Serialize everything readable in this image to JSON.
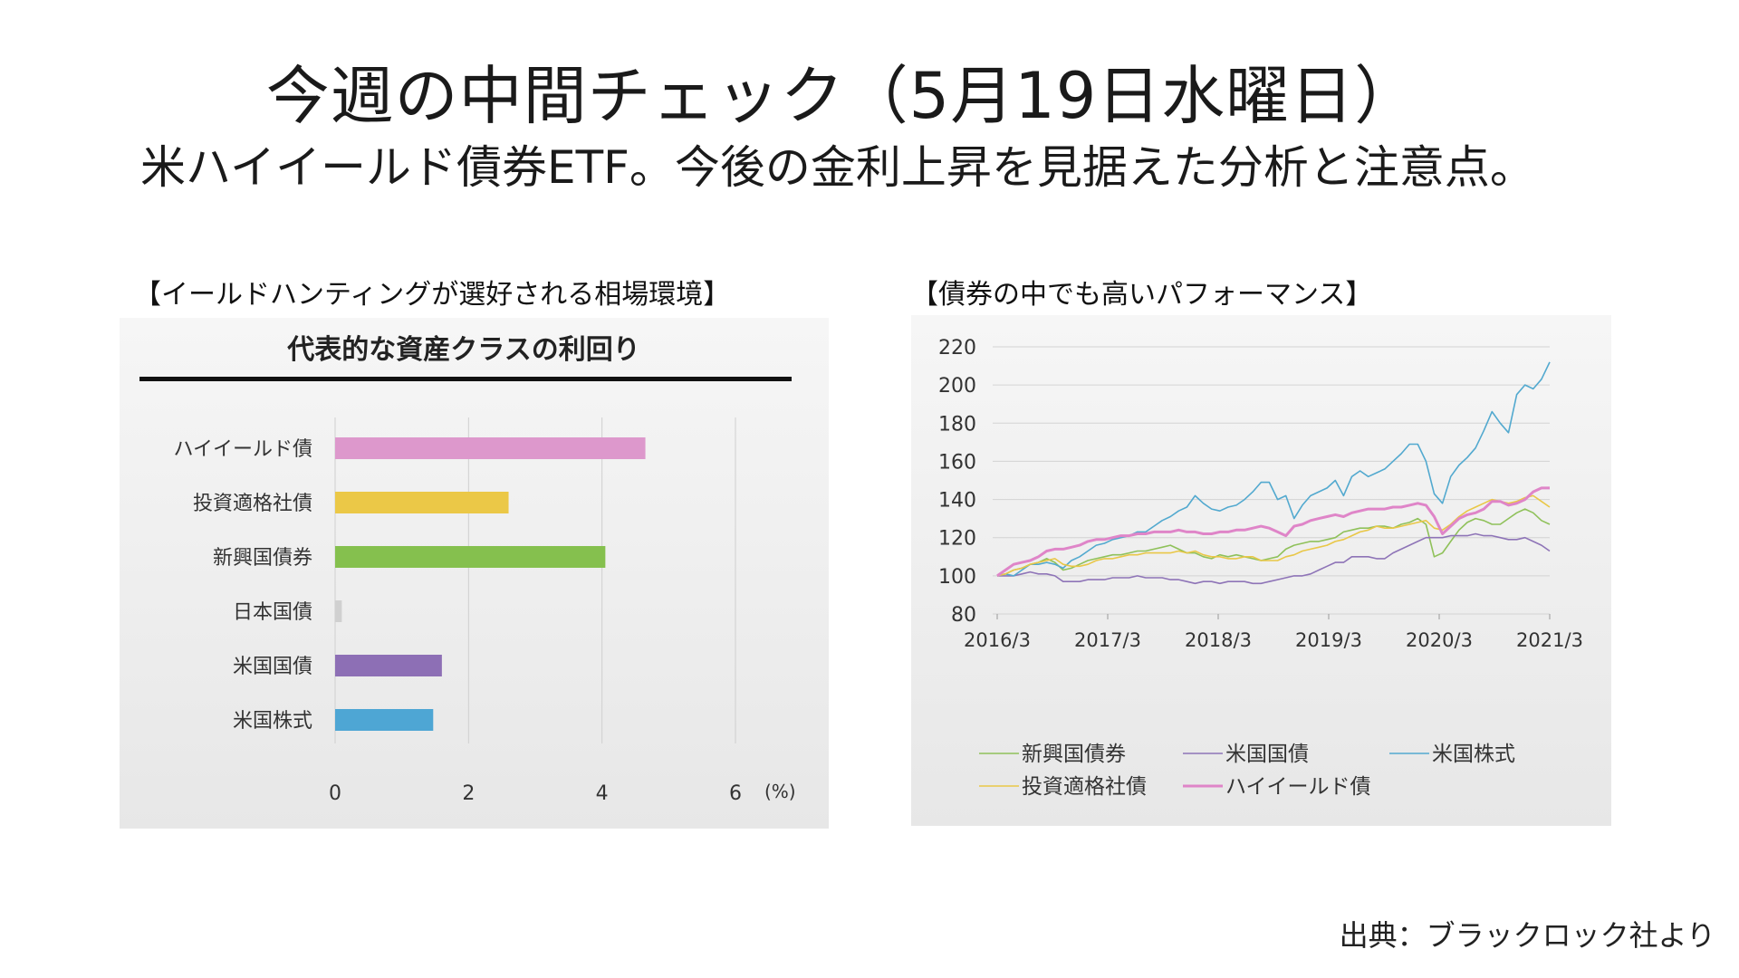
{
  "title": "今週の中間チェック（5月19日水曜日）",
  "subtitle": "米ハイイールド債券ETF。今後の金利上昇を見据えた分析と注意点。",
  "left_panel_label": "【イールドハンティングが選好される相場環境】",
  "right_panel_label": "【債券の中でも高いパフォーマンス】",
  "source": "出典：ブラックロック社より",
  "chart_data": [
    {
      "type": "bar",
      "orientation": "horizontal",
      "title": "代表的な資産クラスの利回り",
      "categories": [
        "ハイイールド債",
        "投資適格社債",
        "新興国債券",
        "日本国債",
        "米国国債",
        "米国株式"
      ],
      "values": [
        4.65,
        2.6,
        4.05,
        0.1,
        1.6,
        1.47
      ],
      "colors": [
        "#dd98cc",
        "#ebc847",
        "#85c04e",
        "#d0d0d0",
        "#8d6fb5",
        "#4ea6d4"
      ],
      "xlim": [
        0,
        6
      ],
      "xticks": [
        "0",
        "2",
        "4",
        "6"
      ],
      "xunit": "(%)",
      "grid": "vertical"
    },
    {
      "type": "line",
      "xlabels": [
        "2016/3",
        "2017/3",
        "2018/3",
        "2019/3",
        "2020/3",
        "2021/3"
      ],
      "ylim": [
        80,
        220
      ],
      "yticks": [
        "80",
        "100",
        "120",
        "140",
        "160",
        "180",
        "200",
        "220"
      ],
      "grid": "horizontal",
      "legend_position": "bottom",
      "series": [
        {
          "name": "新興国債券",
          "color": "#8fc15a",
          "width": 1.6,
          "values": [
            100,
            101,
            103,
            104,
            106,
            107,
            109,
            107,
            103,
            104,
            106,
            108,
            109,
            110,
            111,
            111,
            112,
            113,
            113,
            114,
            115,
            116,
            114,
            112,
            112,
            110,
            109,
            111,
            110,
            111,
            110,
            109,
            108,
            109,
            110,
            114,
            116,
            117,
            118,
            118,
            119,
            120,
            123,
            124,
            125,
            125,
            126,
            126,
            125,
            127,
            128,
            130,
            127,
            110,
            112,
            118,
            124,
            128,
            130,
            129,
            127,
            127,
            130,
            133,
            135,
            133,
            129,
            127
          ]
        },
        {
          "name": "米国国債",
          "color": "#8e74b7",
          "width": 1.6,
          "values": [
            100,
            100,
            100,
            101,
            102,
            101,
            101,
            100,
            97,
            97,
            97,
            98,
            98,
            98,
            99,
            99,
            99,
            100,
            99,
            99,
            99,
            98,
            98,
            97,
            96,
            97,
            97,
            96,
            97,
            97,
            97,
            96,
            96,
            97,
            98,
            99,
            100,
            100,
            101,
            103,
            105,
            107,
            107,
            110,
            110,
            110,
            109,
            109,
            112,
            114,
            116,
            118,
            120,
            120,
            120,
            121,
            121,
            121,
            122,
            121,
            121,
            120,
            119,
            119,
            120,
            118,
            116,
            113
          ]
        },
        {
          "name": "米国株式",
          "color": "#52a9cf",
          "width": 1.6,
          "values": [
            100,
            101,
            100,
            103,
            106,
            106,
            107,
            106,
            104,
            108,
            110,
            113,
            116,
            117,
            119,
            120,
            121,
            123,
            123,
            126,
            129,
            131,
            134,
            136,
            142,
            138,
            135,
            134,
            136,
            137,
            140,
            144,
            149,
            149,
            140,
            142,
            130,
            137,
            142,
            144,
            146,
            150,
            142,
            152,
            155,
            152,
            154,
            156,
            160,
            164,
            169,
            169,
            160,
            143,
            138,
            152,
            158,
            162,
            167,
            176,
            186,
            180,
            175,
            195,
            200,
            198,
            203,
            212
          ]
        },
        {
          "name": "投資適格社債",
          "color": "#e9c747",
          "width": 1.6,
          "values": [
            100,
            101,
            103,
            104,
            106,
            107,
            108,
            109,
            106,
            105,
            105,
            106,
            108,
            109,
            109,
            110,
            111,
            111,
            112,
            112,
            112,
            112,
            113,
            112,
            113,
            111,
            110,
            110,
            109,
            109,
            110,
            110,
            108,
            108,
            108,
            110,
            111,
            113,
            114,
            115,
            116,
            118,
            119,
            121,
            123,
            124,
            126,
            125,
            125,
            126,
            127,
            128,
            129,
            125,
            124,
            127,
            131,
            134,
            136,
            138,
            140,
            139,
            138,
            139,
            141,
            142,
            139,
            136
          ]
        },
        {
          "name": "ハイイールド債",
          "color": "#df85c8",
          "width": 3,
          "values": [
            100,
            103,
            106,
            107,
            108,
            110,
            113,
            114,
            114,
            115,
            116,
            118,
            119,
            119,
            120,
            121,
            121,
            122,
            122,
            123,
            123,
            123,
            124,
            123,
            123,
            122,
            122,
            123,
            123,
            124,
            124,
            125,
            126,
            125,
            123,
            121,
            126,
            127,
            129,
            130,
            131,
            132,
            131,
            133,
            134,
            135,
            135,
            135,
            136,
            136,
            137,
            138,
            137,
            131,
            122,
            126,
            130,
            132,
            133,
            135,
            139,
            139,
            137,
            138,
            140,
            144,
            146,
            146
          ]
        }
      ]
    }
  ]
}
